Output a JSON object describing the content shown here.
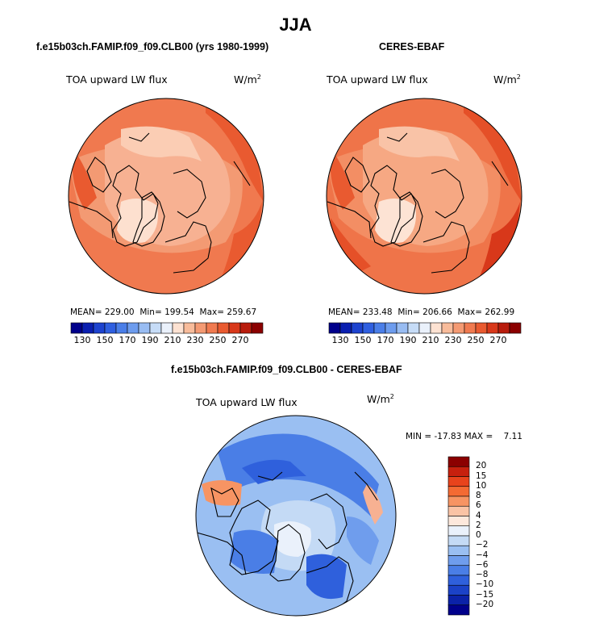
{
  "season": "JJA",
  "panels": {
    "model": {
      "title": "f.e15b03ch.FAMIP.f09_f09.CLB00 (yrs 1980-1999)",
      "field_label": "TOA upward LW flux",
      "units_base": "W/m",
      "units_exp": "2",
      "mean_label": "MEAN=",
      "mean": "229.00",
      "min_label": "Min=",
      "min": "199.54",
      "max_label": "Max=",
      "max": "259.67"
    },
    "obs": {
      "title": "CERES-EBAF",
      "field_label": "TOA upward LW flux",
      "units_base": "W/m",
      "units_exp": "2",
      "mean_label": "MEAN=",
      "mean": "233.48",
      "min_label": "Min=",
      "min": "206.66",
      "max_label": "Max=",
      "max": "262.99"
    },
    "diff": {
      "title": "f.e15b03ch.FAMIP.f09_f09.CLB00 - CERES-EBAF",
      "field_label": "TOA upward LW flux",
      "units_base": "W/m",
      "units_exp": "2",
      "minmax_text": "MIN = -17.83 MAX =    7.11"
    }
  },
  "colorbar_abs": {
    "colors": [
      "#00008b",
      "#0a1fb0",
      "#1d43cf",
      "#2f5fe0",
      "#4a7ee8",
      "#6d9cee",
      "#98bcf2",
      "#c6dcf7",
      "#eaf1fb",
      "#fde2d2",
      "#f8bc9b",
      "#f49a73",
      "#f07a50",
      "#e95a30",
      "#d8381a",
      "#b81c0c",
      "#8b0000"
    ],
    "tick_labels": [
      "130",
      "150",
      "170",
      "190",
      "210",
      "230",
      "250",
      "270"
    ]
  },
  "colorbar_diff": {
    "colors": [
      "#8b0000",
      "#c7200e",
      "#e8431c",
      "#f46a33",
      "#f79463",
      "#fac3a5",
      "#fde8dc",
      "#eaf1fb",
      "#c4daf5",
      "#9abff2",
      "#6f9ded",
      "#4a7ee6",
      "#2f60dc",
      "#1b42c7",
      "#0b22a8",
      "#00008b"
    ],
    "tick_labels": [
      "20",
      "15",
      "10",
      "8",
      "6",
      "4",
      "2",
      "0",
      "−2",
      "−4",
      "−6",
      "−8",
      "−10",
      "−15",
      "−20"
    ]
  }
}
